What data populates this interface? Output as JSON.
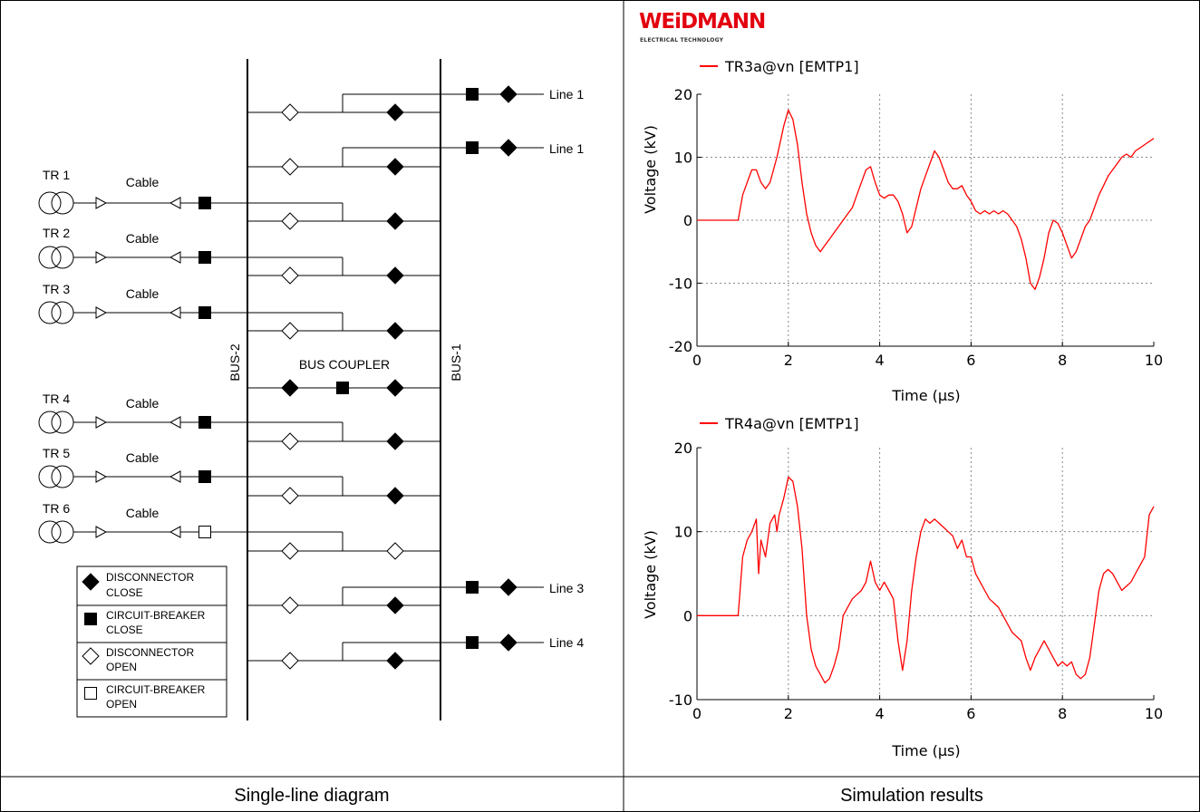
{
  "captions": {
    "left": "Single-line diagram",
    "right": "Simulation results"
  },
  "logo": {
    "name": "WEiDMANN",
    "tagline": "ELECTRICAL TECHNOLOGY"
  },
  "diagram": {
    "bus2_label": "BUS-2",
    "bus1_label": "BUS-1",
    "bus_coupler_label": "BUS COUPLER",
    "cable_label": "Cable",
    "transformers": [
      "TR 1",
      "TR 2",
      "TR 3",
      "TR 4",
      "TR 5",
      "TR 6"
    ],
    "lines": [
      "Line 1",
      "Line 1",
      "Line 3",
      "Line 4"
    ],
    "legend": [
      {
        "symbol": "disconnector-close",
        "line1": "DISCONNECTOR",
        "line2": "CLOSE"
      },
      {
        "symbol": "breaker-close",
        "line1": "CIRCUIT-BREAKER",
        "line2": "CLOSE"
      },
      {
        "symbol": "disconnector-open",
        "line1": "DISCONNECTOR",
        "line2": "OPEN"
      },
      {
        "symbol": "breaker-open",
        "line1": "CIRCUIT-BREAKER",
        "line2": "OPEN"
      }
    ]
  },
  "chart_data": [
    {
      "type": "line",
      "title": "",
      "xlabel": "Time (µs)",
      "ylabel": "Voltage (kV)",
      "xlim": [
        0,
        10
      ],
      "ylim": [
        -20,
        20
      ],
      "xticks": [
        "0",
        "2",
        "4",
        "6",
        "8",
        "10"
      ],
      "yticks": [
        "20",
        "10",
        "0",
        "-10",
        "-20"
      ],
      "grid": true,
      "legend_position": "top-left",
      "series": [
        {
          "name": "TR3a@vn [EMTP1]",
          "color": "#ff0000",
          "x": [
            0,
            0.9,
            1.0,
            1.1,
            1.2,
            1.3,
            1.4,
            1.5,
            1.6,
            1.75,
            1.9,
            2.0,
            2.1,
            2.2,
            2.3,
            2.4,
            2.5,
            2.6,
            2.7,
            2.8,
            2.9,
            3.0,
            3.1,
            3.2,
            3.3,
            3.4,
            3.5,
            3.6,
            3.7,
            3.8,
            3.9,
            4.0,
            4.1,
            4.2,
            4.3,
            4.4,
            4.5,
            4.6,
            4.7,
            4.8,
            4.9,
            5.0,
            5.1,
            5.2,
            5.3,
            5.4,
            5.5,
            5.6,
            5.7,
            5.8,
            5.9,
            6.0,
            6.1,
            6.2,
            6.3,
            6.4,
            6.5,
            6.6,
            6.7,
            6.8,
            6.9,
            7.0,
            7.1,
            7.2,
            7.3,
            7.4,
            7.5,
            7.6,
            7.7,
            7.8,
            7.9,
            8.0,
            8.1,
            8.2,
            8.3,
            8.4,
            8.5,
            8.6,
            8.7,
            8.8,
            8.9,
            9.0,
            9.1,
            9.2,
            9.3,
            9.4,
            9.5,
            9.6,
            9.7,
            9.8,
            9.9,
            10.0
          ],
          "y": [
            0,
            0,
            4,
            6,
            8,
            8,
            6,
            5,
            6,
            10,
            15,
            17.5,
            16,
            12,
            6,
            1,
            -2,
            -4,
            -5,
            -4,
            -3,
            -2,
            -1,
            0,
            1,
            2,
            4,
            6,
            8,
            8.5,
            6,
            4,
            3.5,
            4,
            4,
            3,
            1,
            -2,
            -1,
            2,
            5,
            7,
            9,
            11,
            10,
            8,
            6,
            5,
            5,
            5.5,
            4,
            3,
            1.5,
            1,
            1.5,
            1,
            1.5,
            1,
            1.5,
            1,
            0,
            -1,
            -3,
            -6,
            -10,
            -11,
            -9,
            -6,
            -2,
            0,
            -0.5,
            -2,
            -4,
            -6,
            -5,
            -3,
            -1,
            0,
            2,
            4,
            5.5,
            7,
            8,
            9,
            10,
            10.5,
            10,
            11,
            11.5,
            12,
            12.5,
            13
          ]
        }
      ]
    },
    {
      "type": "line",
      "title": "",
      "xlabel": "Time (µs)",
      "ylabel": "Voltage (kV)",
      "xlim": [
        0,
        10
      ],
      "ylim": [
        -10,
        20
      ],
      "xticks": [
        "0",
        "2",
        "4",
        "6",
        "8",
        "10"
      ],
      "yticks": [
        "20",
        "10",
        "0",
        "-10"
      ],
      "grid": true,
      "legend_position": "top-left",
      "series": [
        {
          "name": "TR4a@vn [EMTP1]",
          "color": "#ff0000",
          "x": [
            0,
            0.9,
            1.0,
            1.1,
            1.2,
            1.3,
            1.35,
            1.4,
            1.5,
            1.6,
            1.7,
            1.75,
            1.8,
            1.9,
            2.0,
            2.1,
            2.2,
            2.3,
            2.4,
            2.5,
            2.6,
            2.7,
            2.8,
            2.9,
            3.0,
            3.1,
            3.2,
            3.3,
            3.4,
            3.5,
            3.6,
            3.7,
            3.8,
            3.9,
            4.0,
            4.1,
            4.2,
            4.3,
            4.4,
            4.5,
            4.6,
            4.7,
            4.8,
            4.9,
            5.0,
            5.1,
            5.2,
            5.3,
            5.4,
            5.5,
            5.6,
            5.7,
            5.8,
            5.9,
            6.0,
            6.1,
            6.2,
            6.3,
            6.4,
            6.5,
            6.6,
            6.7,
            6.8,
            6.9,
            7.0,
            7.1,
            7.2,
            7.3,
            7.4,
            7.5,
            7.6,
            7.7,
            7.8,
            7.9,
            8.0,
            8.1,
            8.2,
            8.3,
            8.4,
            8.5,
            8.6,
            8.7,
            8.8,
            8.9,
            9.0,
            9.1,
            9.2,
            9.3,
            9.4,
            9.5,
            9.6,
            9.7,
            9.8,
            9.9,
            10.0
          ],
          "y": [
            0,
            0,
            7,
            9,
            10,
            11.5,
            5,
            9,
            7,
            11,
            12,
            10,
            12,
            14,
            16.5,
            16,
            13,
            8,
            0,
            -4,
            -6,
            -7,
            -8,
            -7.5,
            -6,
            -4,
            0,
            1,
            2,
            2.5,
            3,
            4,
            6.5,
            4,
            3,
            4,
            3,
            2,
            -3,
            -6.5,
            -3,
            3,
            7,
            10,
            11.5,
            11,
            11.5,
            11,
            10.5,
            10,
            9.5,
            8,
            9,
            7,
            7,
            5,
            4,
            3,
            2,
            1.5,
            1,
            0,
            -1,
            -2,
            -2.5,
            -3,
            -5,
            -6.5,
            -5,
            -4,
            -3,
            -4,
            -5,
            -6,
            -5.5,
            -6,
            -5.5,
            -7,
            -7.5,
            -7,
            -5,
            -1,
            3,
            5,
            5.5,
            5,
            4,
            3,
            3.5,
            4,
            5,
            6,
            7,
            12,
            13
          ]
        }
      ]
    }
  ]
}
